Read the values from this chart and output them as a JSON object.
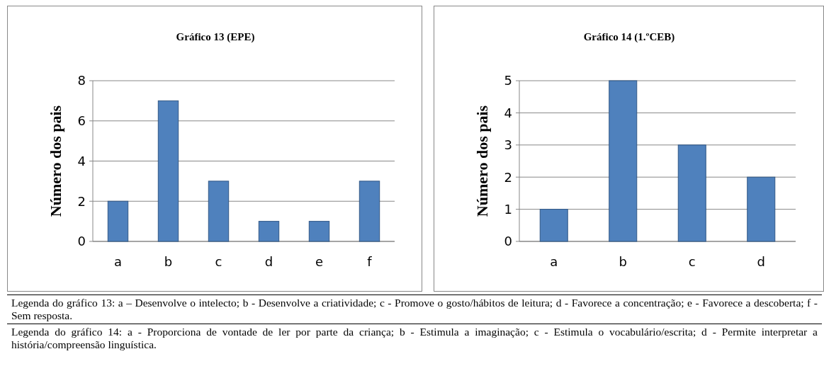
{
  "chart_data": [
    {
      "type": "bar",
      "title": "Gráfico 13 (EPE)",
      "ylabel": "Número dos pais",
      "categories": [
        "a",
        "b",
        "c",
        "d",
        "e",
        "f"
      ],
      "values": [
        2,
        7,
        3,
        1,
        1,
        3
      ],
      "color": "#4f81bd",
      "ylim": [
        0,
        8
      ],
      "yticks": [
        0,
        2,
        4,
        6,
        8
      ],
      "grid": "y",
      "annotations": [
        "Legenda do gráfico 13: a – Desenvolve o intelecto; b - Desenvolve a criatividade; c - Promove o gosto/hábitos de leitura; d - Favorece a concentração; e - Favorece a descoberta; f - Sem resposta."
      ]
    },
    {
      "type": "bar",
      "title": "Gráfico 14 (1.ºCEB)",
      "ylabel": "Número dos pais",
      "categories": [
        "a",
        "b",
        "c",
        "d"
      ],
      "values": [
        1,
        5,
        3,
        2
      ],
      "color": "#4f81bd",
      "ylim": [
        0,
        5
      ],
      "yticks": [
        0,
        1,
        2,
        3,
        4,
        5
      ],
      "grid": "y",
      "annotations": [
        "Legenda do gráfico 14: a - Proporciona de vontade de ler por parte da criança; b - Estimula a imaginação; c - Estimula o vocabulário/escrita; d - Permite interpretar a história/compreensão linguística."
      ]
    }
  ]
}
